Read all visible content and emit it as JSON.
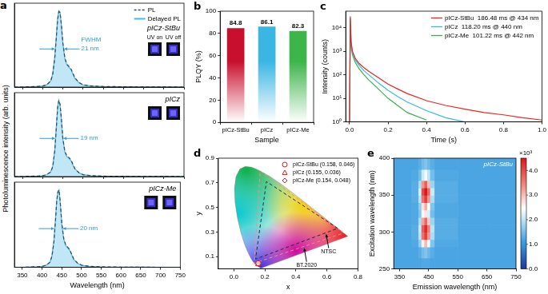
{
  "chart_data": [
    {
      "type": "line",
      "title": "a",
      "ylabel": "Photoluminescence intensity (arb. units)",
      "x": [
        330,
        350,
        370,
        390,
        400,
        410,
        420,
        425,
        430,
        434,
        437,
        440,
        443,
        446,
        450,
        455,
        460,
        465,
        470,
        475,
        480,
        490,
        500,
        520,
        550,
        600,
        650,
        700,
        750
      ],
      "series": [
        {
          "name": "PL",
          "color": "#34495e",
          "line_style": "dashed",
          "values": [
            0,
            0,
            0.005,
            0.01,
            0.015,
            0.03,
            0.08,
            0.17,
            0.38,
            0.66,
            0.88,
            0.99,
            0.98,
            0.84,
            0.58,
            0.38,
            0.3,
            0.27,
            0.24,
            0.18,
            0.12,
            0.06,
            0.03,
            0.015,
            0.008,
            0.004,
            0.002,
            0.001,
            0
          ]
        },
        {
          "name": "Delayed PL",
          "color": "#4db6e6",
          "type": "area",
          "values": [
            0,
            0,
            0.004,
            0.009,
            0.014,
            0.03,
            0.08,
            0.18,
            0.4,
            0.68,
            0.9,
            1.0,
            0.98,
            0.83,
            0.57,
            0.37,
            0.29,
            0.26,
            0.23,
            0.17,
            0.11,
            0.055,
            0.028,
            0.014,
            0.007,
            0.003,
            0.002,
            0.001,
            0
          ]
        }
      ],
      "xlim": [
        330,
        750
      ],
      "xticks": [
        350,
        400,
        450,
        500,
        550,
        600,
        650,
        700,
        750
      ],
      "ylim": [
        0,
        1.1
      ],
      "tick_labels": false,
      "grid": false,
      "legend": "upper right",
      "annotations": {
        "sample": "pICz-StBu",
        "width_title": "FWHM",
        "width": "21 nm",
        "insets": [
          "UV on",
          "UV off"
        ]
      }
    },
    {
      "type": "line",
      "x": [
        330,
        350,
        370,
        390,
        400,
        410,
        420,
        425,
        430,
        434,
        437,
        440,
        443,
        446,
        450,
        455,
        460,
        465,
        470,
        475,
        480,
        490,
        500,
        520,
        550,
        600,
        650,
        700,
        750
      ],
      "series": [
        {
          "color": "#34495e",
          "line_style": "dashed",
          "values": [
            0,
            0,
            0.004,
            0.008,
            0.012,
            0.025,
            0.06,
            0.13,
            0.33,
            0.65,
            0.9,
            1.0,
            0.95,
            0.78,
            0.5,
            0.33,
            0.27,
            0.25,
            0.22,
            0.16,
            0.1,
            0.05,
            0.025,
            0.012,
            0.006,
            0.003,
            0.002,
            0.001,
            0
          ]
        },
        {
          "color": "#4db6e6",
          "type": "area",
          "values": [
            0,
            0,
            0.003,
            0.007,
            0.011,
            0.024,
            0.06,
            0.14,
            0.35,
            0.67,
            0.91,
            1.0,
            0.94,
            0.77,
            0.49,
            0.32,
            0.26,
            0.24,
            0.21,
            0.15,
            0.1,
            0.048,
            0.024,
            0.011,
            0.005,
            0.003,
            0.001,
            0.001,
            0
          ]
        }
      ],
      "xlim": [
        330,
        750
      ],
      "xticks": [
        350,
        400,
        450,
        500,
        550,
        600,
        650,
        700,
        750
      ],
      "ylim": [
        0,
        1.1
      ],
      "tick_labels": false,
      "grid": false,
      "annotations": {
        "sample": "pICz",
        "width": "19 nm"
      }
    },
    {
      "type": "line",
      "xlabel": "Wavelength (nm)",
      "x": [
        330,
        350,
        370,
        390,
        400,
        410,
        420,
        425,
        430,
        434,
        437,
        440,
        443,
        446,
        450,
        455,
        460,
        465,
        470,
        475,
        480,
        490,
        500,
        520,
        550,
        600,
        650,
        700,
        750
      ],
      "series": [
        {
          "color": "#34495e",
          "line_style": "dashed",
          "values": [
            0,
            0,
            0.004,
            0.009,
            0.013,
            0.027,
            0.065,
            0.14,
            0.32,
            0.6,
            0.84,
            0.97,
            1.0,
            0.85,
            0.57,
            0.37,
            0.29,
            0.26,
            0.23,
            0.17,
            0.11,
            0.055,
            0.028,
            0.013,
            0.007,
            0.003,
            0.002,
            0.001,
            0
          ]
        },
        {
          "color": "#4db6e6",
          "type": "area",
          "values": [
            0,
            0,
            0.004,
            0.008,
            0.012,
            0.026,
            0.064,
            0.15,
            0.34,
            0.62,
            0.86,
            0.98,
            1.0,
            0.84,
            0.56,
            0.36,
            0.28,
            0.25,
            0.22,
            0.16,
            0.1,
            0.05,
            0.026,
            0.012,
            0.006,
            0.003,
            0.002,
            0.001,
            0
          ]
        }
      ],
      "xlim": [
        330,
        750
      ],
      "xticks": [
        350,
        400,
        450,
        500,
        550,
        600,
        650,
        700,
        750
      ],
      "ylim": [
        0,
        1.1
      ],
      "tick_labels": "x",
      "grid": false,
      "annotations": {
        "sample": "pICz-Me",
        "width": "20 nm"
      }
    },
    {
      "type": "bar",
      "title": "b",
      "xlabel": "Sample",
      "ylabel": "PLQY (%)",
      "categories": [
        "pICz-StBu",
        "pICz",
        "pICz-Me"
      ],
      "values": [
        84.8,
        86.1,
        82.3
      ],
      "colors": [
        "#c8102e",
        "#3bb6e3",
        "#3cb54a"
      ],
      "ylim": [
        0,
        100
      ],
      "yticks": [
        0,
        20,
        40,
        60,
        80,
        100
      ],
      "grid": false,
      "data_labels": true
    },
    {
      "type": "line",
      "title": "c",
      "xlabel": "Time (s)",
      "ylabel": "Intensity (counts)",
      "log": "y",
      "x": [
        0,
        0.004,
        0.008,
        0.015,
        0.03,
        0.05,
        0.075,
        0.1,
        0.15,
        0.2,
        0.25,
        0.3,
        0.4,
        0.5,
        0.6,
        0.7,
        0.8,
        0.9,
        1.0
      ],
      "series": [
        {
          "name": "pICz-StBu",
          "annotation": "186.48 ms @ 434 nm",
          "color": "#e8261f",
          "values": [
            1,
            30000,
            2500,
            1000,
            500,
            300,
            200,
            140,
            75,
            40,
            25,
            16,
            8,
            5,
            3.5,
            2.5,
            2,
            1.5,
            1.2
          ]
        },
        {
          "name": "pICz",
          "annotation": "118.20 ms @ 440 nm",
          "color": "#36b7e6",
          "values": [
            1,
            25000,
            2000,
            900,
            420,
            250,
            150,
            100,
            45,
            22,
            12,
            7,
            3,
            1.5,
            1,
            null,
            null,
            null,
            null
          ]
        },
        {
          "name": "pICz-Me",
          "annotation": "101.22 ms @ 442 nm",
          "color": "#35b34a",
          "values": [
            1,
            20000,
            1600,
            700,
            330,
            180,
            100,
            60,
            25,
            10,
            5,
            2.5,
            1.2,
            null,
            null,
            null,
            null,
            null,
            null
          ]
        }
      ],
      "xlim": [
        -0.02,
        1.0
      ],
      "xticks": [
        {
          "value": 0,
          "label": "0.0"
        },
        0.2,
        0.4,
        0.6,
        0.8,
        {
          "value": 1,
          "label": "1.0"
        }
      ],
      "ylim": [
        1,
        50000
      ],
      "yticks": [
        {
          "value": 1,
          "label": "10⁰"
        },
        {
          "value": 10,
          "label": "10¹"
        },
        {
          "value": 100,
          "label": "10²"
        },
        {
          "value": 1000,
          "label": "10³"
        },
        {
          "value": 10000,
          "label": "10⁴"
        }
      ],
      "grid": false,
      "legend": "upper right"
    },
    {
      "type": "scatter",
      "title": "d",
      "xlabel": "x",
      "ylabel": "y",
      "series": [
        {
          "type": "area",
          "x": [
            0.1741,
            0.144,
            0.1241,
            0.1096,
            0.0913,
            0.0687,
            0.0454,
            0.0235,
            0.0082,
            0.0039,
            0.0139,
            0.0389,
            0.0743,
            0.1142,
            0.1547,
            0.2296,
            0.3016,
            0.3731,
            0.4441,
            0.5125,
            0.5752,
            0.627,
            0.6915,
            0.7347
          ],
          "values": [
            0.005,
            0.0297,
            0.0578,
            0.0868,
            0.1327,
            0.2007,
            0.295,
            0.4127,
            0.5384,
            0.6548,
            0.7502,
            0.812,
            0.8338,
            0.8262,
            0.8059,
            0.7543,
            0.6923,
            0.6245,
            0.5547,
            0.4866,
            0.4242,
            0.3725,
            0.3083,
            0.2653
          ]
        },
        {
          "type": "line",
          "annotation": "NTSC",
          "color": "#2b2b2b",
          "line_style": "dashed",
          "x": [
            0.67,
            0.21,
            0.14,
            0.67
          ],
          "values": [
            0.33,
            0.71,
            0.08,
            0.33
          ]
        },
        {
          "type": "line",
          "annotation": "BT.2020",
          "color": "#f28c8c",
          "line_style": "dashed",
          "x": [
            0.708,
            0.17,
            0.131,
            0.708
          ],
          "values": [
            0.292,
            0.797,
            0.046,
            0.292
          ]
        },
        {
          "name": "pICz-StBu (0.158, 0.046)",
          "marker": "circle",
          "color": "#e41a1c",
          "x": [
            0.158
          ],
          "values": [
            0.046
          ]
        },
        {
          "name": "pICz (0.155, 0.036)",
          "marker": "triangle",
          "color": "#e41a1c",
          "x": [
            0.155
          ],
          "values": [
            0.036
          ]
        },
        {
          "name": "pICz-Me (0.154, 0.048)",
          "marker": "diamond",
          "color": "#e41a1c",
          "x": [
            0.154
          ],
          "values": [
            0.048
          ]
        }
      ],
      "xlim": [
        -0.1,
        0.8
      ],
      "xticks": [
        {
          "value": 0,
          "label": "0.0"
        },
        0.2,
        0.4,
        0.6,
        0.8
      ],
      "ylim": [
        0,
        0.9
      ],
      "yticks": [
        0.1,
        0.3,
        0.5,
        0.7,
        0.9
      ],
      "grid": false,
      "legend": "upper right"
    },
    {
      "type": "heatmap",
      "title": "e",
      "xlabel": "Emission wavelength (nm)",
      "ylabel": "Excitation wavelength (nm)",
      "xlim": [
        330,
        750
      ],
      "xticks": [
        350,
        450,
        550,
        650,
        750
      ],
      "ylim": [
        250,
        400
      ],
      "yticks": [
        250,
        300,
        350,
        400
      ],
      "x_edges": [
        330,
        390,
        415,
        425,
        435,
        445,
        455,
        470,
        550,
        650,
        750
      ],
      "y_edges": [
        250,
        265,
        280,
        290,
        300,
        310,
        320,
        330,
        340,
        350,
        360,
        370,
        385,
        400
      ],
      "cells": [
        [
          1200,
          1200,
          1200,
          1250,
          1250,
          1250,
          1200,
          1200,
          1200,
          1200
        ],
        [
          1200,
          1200,
          1300,
          1500,
          1600,
          1450,
          1300,
          1200,
          1200,
          1200
        ],
        [
          1200,
          1250,
          1700,
          2600,
          3000,
          2400,
          1600,
          1250,
          1200,
          1200
        ],
        [
          1200,
          1300,
          2000,
          3600,
          4100,
          3300,
          1900,
          1300,
          1200,
          1200
        ],
        [
          1200,
          1300,
          2100,
          3800,
          4300,
          3500,
          2000,
          1300,
          1200,
          1200
        ],
        [
          1200,
          1250,
          1900,
          3200,
          3700,
          2900,
          1800,
          1300,
          1200,
          1200
        ],
        [
          1200,
          1250,
          1600,
          2400,
          2700,
          2200,
          1500,
          1250,
          1200,
          1200
        ],
        [
          1200,
          1250,
          1700,
          2700,
          3100,
          2500,
          1600,
          1250,
          1200,
          1200
        ],
        [
          1200,
          1300,
          2000,
          3600,
          4100,
          3300,
          1900,
          1300,
          1200,
          1200
        ],
        [
          1200,
          1300,
          2200,
          4000,
          4500,
          3700,
          2100,
          1300,
          1200,
          1200
        ],
        [
          1200,
          1300,
          1900,
          3300,
          3800,
          3000,
          1800,
          1300,
          1200,
          1200
        ],
        [
          1200,
          1250,
          1500,
          2100,
          2400,
          2000,
          1500,
          1250,
          1200,
          1200
        ],
        [
          1200,
          1200,
          1300,
          1500,
          1600,
          1450,
          1300,
          1200,
          1200,
          1200
        ]
      ],
      "colorbar": {
        "lim": [
          0,
          4500
        ],
        "ticks": [
          {
            "value": 0,
            "label": "0.0"
          },
          {
            "value": 1000,
            "label": "1.0"
          },
          {
            "value": 2000,
            "label": "2.0"
          },
          {
            "value": 3000,
            "label": "3.0"
          },
          {
            "value": 4000,
            "label": "4.0"
          }
        ],
        "title": "×10³"
      },
      "annotations": [
        "pICz-StBu"
      ],
      "grid": false
    }
  ]
}
